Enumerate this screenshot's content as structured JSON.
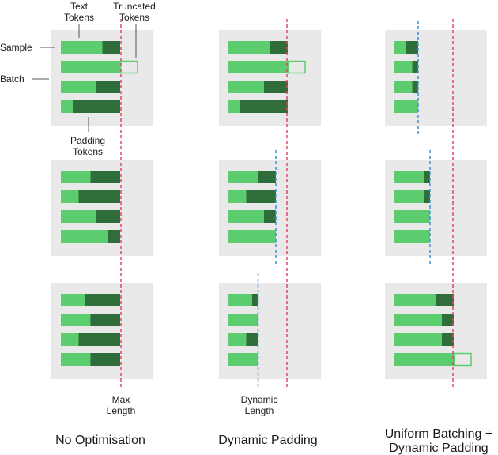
{
  "annotations": {
    "text_tokens": [
      "Text",
      "Tokens"
    ],
    "truncated_tokens": [
      "Truncated",
      "Tokens"
    ],
    "sample": "Sample",
    "batch": "Batch",
    "padding_tokens": [
      "Padding",
      "Tokens"
    ],
    "max_length": [
      "Max",
      "Length"
    ],
    "dynamic_length": [
      "Dynamic",
      "Length"
    ]
  },
  "columns": [
    {
      "title": [
        "No Optimisation"
      ]
    },
    {
      "title": [
        "Dynamic Padding"
      ]
    },
    {
      "title": [
        "Uniform Batching +",
        "Dynamic Padding"
      ]
    }
  ],
  "colors": {
    "panel": "#e9e9e9",
    "text_token": "#5ccd6e",
    "padding_token": "#2f6e3b",
    "truncated_outline": "#5ccd6e",
    "max_length_line": "#e0466a",
    "dynamic_length_line": "#3e8fd8"
  },
  "legend": {
    "text_token": "light green segment",
    "padding_token": "dark green segment",
    "truncated": "outlined segment beyond max length"
  },
  "max_length_tokens": 10,
  "batches": [
    [
      {
        "samples": [
          7,
          13,
          6,
          2
        ],
        "dynamic_length": null
      },
      {
        "samples": [
          5,
          3,
          6,
          8
        ],
        "dynamic_length": null
      },
      {
        "samples": [
          4,
          5,
          3,
          5
        ],
        "dynamic_length": null
      }
    ],
    [
      {
        "samples": [
          7,
          13,
          6,
          2
        ],
        "dynamic_length": null
      },
      {
        "samples": [
          5,
          3,
          6,
          8
        ],
        "dynamic_length": 8
      },
      {
        "samples": [
          4,
          5,
          3,
          5
        ],
        "dynamic_length": 5
      }
    ],
    [
      {
        "samples": [
          2,
          3,
          3,
          4
        ],
        "dynamic_length": 4
      },
      {
        "samples": [
          5,
          5,
          6,
          6
        ],
        "dynamic_length": 6
      },
      {
        "samples": [
          7,
          8,
          8,
          13
        ],
        "dynamic_length": null
      }
    ]
  ]
}
